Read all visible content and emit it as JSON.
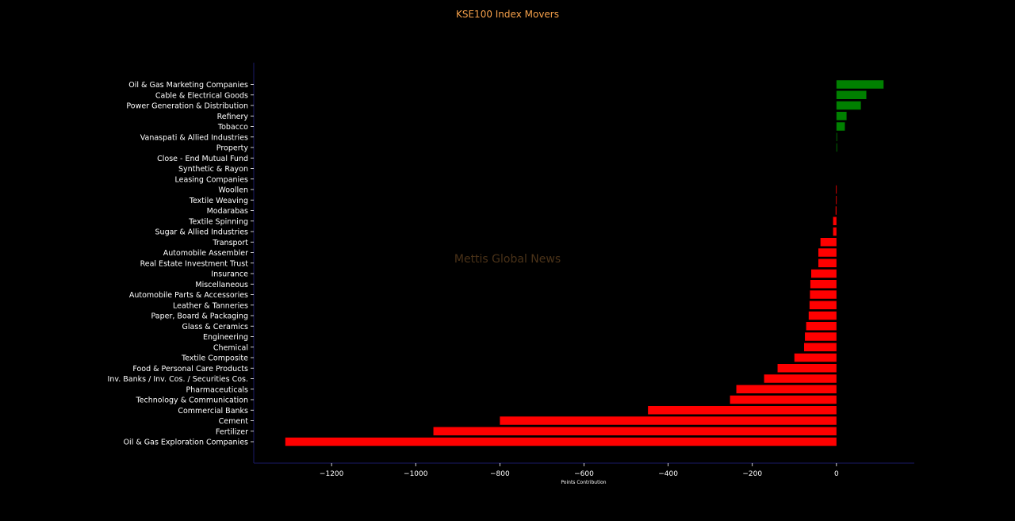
{
  "title": "KSE100 Index Movers",
  "watermark": "Mettis Global News",
  "chart_data": {
    "type": "bar",
    "orientation": "horizontal",
    "title": "KSE100 Index Movers",
    "xlabel": "Points Contribution",
    "ylabel": "",
    "xlim": [
      -1385,
      185
    ],
    "xticks": [
      -1200,
      -1000,
      -800,
      -600,
      -400,
      -200,
      0
    ],
    "xtick_labels": [
      "−1200",
      "−1000",
      "−800",
      "−600",
      "−400",
      "−200",
      "0"
    ],
    "grid": false,
    "colors": {
      "positive": "#008000",
      "negative": "#ff0000",
      "axis": "#1a1a66",
      "text": "#ffffff",
      "title": "#f5a04a"
    },
    "categories": [
      "Oil & Gas Marketing Companies",
      "Cable & Electrical Goods",
      "Power Generation & Distribution",
      "Refinery",
      "Tobacco",
      "Vanaspati & Allied Industries",
      "Property",
      "Close - End Mutual Fund",
      "Synthetic & Rayon",
      "Leasing Companies",
      "Woollen",
      "Textile Weaving",
      "Modarabas",
      "Textile Spinning",
      "Sugar & Allied Industries",
      "Transport",
      "Automobile Assembler",
      "Real Estate Investment Trust",
      "Insurance",
      "Miscellaneous",
      "Automobile Parts & Accessories",
      "Leather & Tanneries",
      "Paper, Board & Packaging",
      "Glass & Ceramics",
      "Engineering",
      "Chemical",
      "Textile Composite",
      "Food & Personal Care Products",
      "Inv. Banks / Inv. Cos. / Securities Cos.",
      "Pharmaceuticals",
      "Technology & Communication",
      "Commercial Banks",
      "Cement",
      "Fertilizer",
      "Oil & Gas Exploration Companies"
    ],
    "values": [
      112,
      71,
      58,
      24,
      20,
      1.5,
      1.5,
      0,
      0,
      0,
      -1,
      -1,
      -2,
      -8,
      -8,
      -38,
      -43,
      -43,
      -60,
      -62,
      -63,
      -64,
      -66,
      -72,
      -75,
      -77,
      -100,
      -140,
      -172,
      -238,
      -253,
      -448,
      -800,
      -958,
      -1310
    ]
  }
}
